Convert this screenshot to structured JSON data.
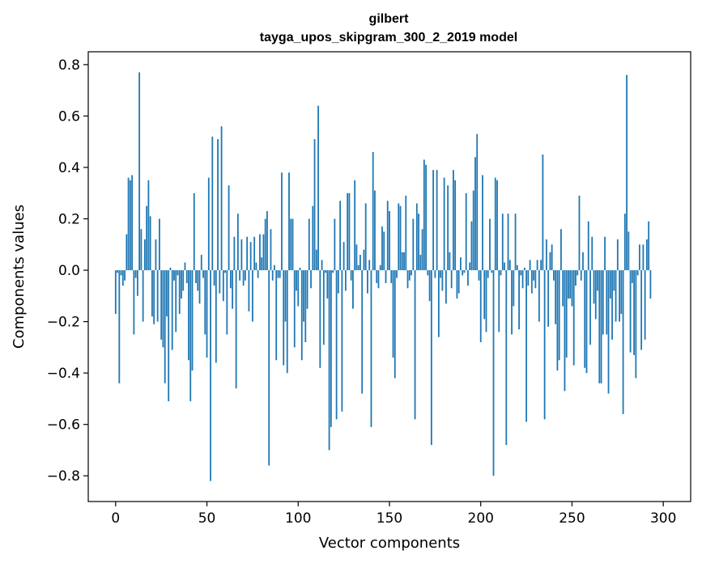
{
  "chart_data": {
    "type": "bar",
    "title": "gilbert",
    "subtitle": "tayga_upos_skipgram_300_2_2019 model",
    "xlabel": "Vector components",
    "ylabel": "Components values",
    "xlim": [
      -15,
      315
    ],
    "ylim": [
      -0.9,
      0.85
    ],
    "xticks": [
      0,
      50,
      100,
      150,
      200,
      250,
      300
    ],
    "xtick_labels": [
      "0",
      "50",
      "100",
      "150",
      "200",
      "250",
      "300"
    ],
    "yticks": [
      -0.8,
      -0.6,
      -0.4,
      -0.2,
      0.0,
      0.2,
      0.4,
      0.6,
      0.8
    ],
    "ytick_labels": [
      "−0.8",
      "−0.6",
      "−0.4",
      "−0.2",
      "0.0",
      "0.2",
      "0.4",
      "0.6",
      "0.8"
    ],
    "bar_color": "#1f77b4",
    "grid": false,
    "values": [
      -0.17,
      -0.01,
      -0.44,
      -0.02,
      -0.06,
      -0.04,
      0.14,
      0.36,
      0.35,
      0.37,
      -0.25,
      -0.03,
      -0.1,
      0.77,
      0.16,
      -0.2,
      0.12,
      0.25,
      0.35,
      0.21,
      -0.18,
      -0.21,
      0.12,
      -0.2,
      0.2,
      -0.27,
      -0.3,
      -0.44,
      -0.18,
      -0.51,
      0.01,
      -0.31,
      -0.04,
      -0.24,
      -0.02,
      -0.17,
      -0.11,
      -0.08,
      0.03,
      -0.05,
      -0.35,
      -0.51,
      -0.39,
      0.3,
      -0.05,
      -0.08,
      -0.13,
      0.06,
      -0.03,
      -0.25,
      -0.34,
      0.36,
      -0.82,
      0.52,
      -0.06,
      -0.36,
      0.51,
      -0.09,
      0.56,
      -0.12,
      -0.01,
      -0.25,
      0.33,
      -0.07,
      -0.15,
      0.13,
      -0.46,
      0.22,
      -0.04,
      0.12,
      -0.06,
      -0.04,
      0.13,
      -0.16,
      0.11,
      -0.2,
      0.13,
      0.03,
      -0.03,
      0.14,
      0.05,
      0.14,
      0.2,
      0.23,
      -0.76,
      0.16,
      -0.04,
      0.02,
      -0.35,
      -0.03,
      -0.03,
      0.38,
      -0.37,
      -0.2,
      -0.4,
      0.38,
      0.2,
      0.2,
      -0.3,
      -0.08,
      -0.14,
      0.01,
      -0.35,
      -0.2,
      -0.28,
      -0.15,
      0.2,
      -0.07,
      0.25,
      0.51,
      0.08,
      0.64,
      -0.38,
      0.04,
      -0.29,
      -0.01,
      -0.11,
      -0.7,
      -0.61,
      -0.01,
      0.2,
      -0.58,
      -0.09,
      0.27,
      -0.55,
      0.11,
      -0.08,
      0.3,
      0.3,
      -0.04,
      -0.15,
      0.35,
      0.1,
      0.02,
      0.06,
      -0.48,
      0.08,
      0.26,
      -0.09,
      0.04,
      -0.61,
      0.46,
      0.31,
      -0.05,
      -0.07,
      0.02,
      0.17,
      0.15,
      -0.05,
      0.27,
      0.23,
      -0.05,
      -0.34,
      -0.42,
      -0.03,
      0.26,
      0.25,
      0.07,
      0.07,
      0.29,
      -0.07,
      -0.04,
      -0.02,
      0.2,
      -0.58,
      0.26,
      0.22,
      0.06,
      0.16,
      0.43,
      0.41,
      -0.02,
      -0.12,
      -0.68,
      0.39,
      -0.03,
      0.39,
      -0.26,
      -0.03,
      -0.08,
      0.36,
      -0.13,
      0.33,
      0.07,
      -0.07,
      0.39,
      0.35,
      -0.11,
      -0.09,
      0.05,
      -0.02,
      -0.01,
      0.3,
      -0.06,
      0.03,
      0.19,
      0.31,
      0.44,
      0.53,
      -0.04,
      -0.28,
      0.37,
      -0.19,
      -0.24,
      -0.03,
      0.2,
      -0.01,
      -0.8,
      0.36,
      0.35,
      -0.24,
      -0.02,
      0.22,
      0.03,
      -0.68,
      0.22,
      0.04,
      -0.25,
      -0.14,
      0.22,
      0.02,
      -0.23,
      -0.02,
      -0.07,
      0.01,
      -0.59,
      -0.06,
      0.04,
      -0.09,
      -0.04,
      -0.07,
      0.04,
      -0.2,
      0.04,
      0.45,
      -0.58,
      0.12,
      -0.22,
      0.07,
      0.1,
      -0.04,
      -0.21,
      -0.39,
      -0.35,
      0.16,
      -0.14,
      -0.47,
      -0.34,
      -0.11,
      -0.11,
      -0.14,
      -0.37,
      -0.06,
      -0.02,
      0.29,
      -0.04,
      0.07,
      -0.38,
      -0.4,
      0.19,
      -0.29,
      0.13,
      -0.13,
      -0.19,
      -0.08,
      -0.44,
      -0.44,
      -0.25,
      0.13,
      -0.25,
      -0.48,
      -0.11,
      -0.27,
      -0.08,
      -0.2,
      0.12,
      -0.2,
      -0.17,
      -0.56,
      0.22,
      0.76,
      0.15,
      -0.32,
      -0.05,
      -0.33,
      -0.42,
      -0.02,
      0.1,
      -0.31,
      0.1,
      -0.27,
      0.12,
      0.19,
      -0.11
    ]
  }
}
